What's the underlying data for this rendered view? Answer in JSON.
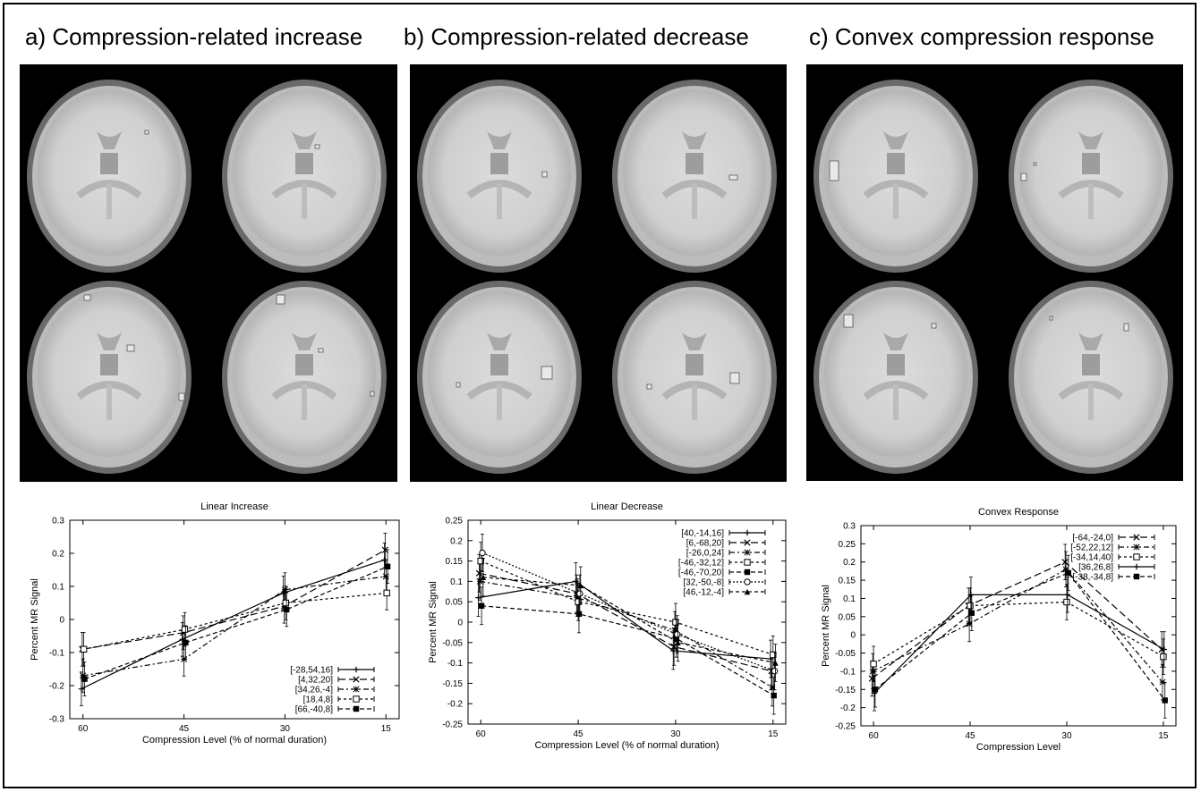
{
  "panels": [
    {
      "title": "a) Compression-related increase",
      "chart_data": {
        "type": "line",
        "title": "Linear Increase",
        "xlabel": "Compression Level (% of normal duration)",
        "ylabel": "Percent MR Signal",
        "categories": [
          "60",
          "45",
          "30",
          "15"
        ],
        "ylim": [
          -0.3,
          0.3
        ],
        "yticks": [
          "-0.3",
          "-0.2",
          "-0.1",
          "0",
          "0.1",
          "0.2",
          "0.3"
        ],
        "grid": false,
        "legend_position": "bottom-right",
        "series": [
          {
            "name": "[-28,54,16]",
            "values": [
              -0.21,
              -0.06,
              0.08,
              0.18
            ],
            "dash": "none",
            "marker": "plus"
          },
          {
            "name": "[4,32,20]",
            "values": [
              -0.09,
              -0.04,
              0.04,
              0.21
            ],
            "dash": "8,4",
            "marker": "x"
          },
          {
            "name": "[34,26,-4]",
            "values": [
              -0.17,
              -0.12,
              0.09,
              0.13
            ],
            "dash": "6,3,2,3",
            "marker": "star"
          },
          {
            "name": "[18,4,8]",
            "values": [
              -0.09,
              -0.03,
              0.05,
              0.08
            ],
            "dash": "3,3",
            "marker": "square"
          },
          {
            "name": "[66,-40,8]",
            "values": [
              -0.18,
              -0.07,
              0.03,
              0.16
            ],
            "dash": "5,3",
            "marker": "filledsquare"
          }
        ]
      }
    },
    {
      "title": "b) Compression-related decrease",
      "chart_data": {
        "type": "line",
        "title": "Linear Decrease",
        "xlabel": "Compression Level (% of normal duration)",
        "ylabel": "Percent MR Signal",
        "categories": [
          "60",
          "45",
          "30",
          "15"
        ],
        "ylim": [
          -0.25,
          0.25
        ],
        "yticks": [
          "-0.25",
          "-0.2",
          "-0.15",
          "-0.1",
          "-0.05",
          "0",
          "0.05",
          "0.1",
          "0.15",
          "0.2",
          "0.25"
        ],
        "grid": false,
        "legend_position": "top-right",
        "series": [
          {
            "name": "[40,-14,16]",
            "values": [
              0.06,
              0.1,
              -0.07,
              -0.09
            ],
            "dash": "none",
            "marker": "plus"
          },
          {
            "name": "[6,-68,20]",
            "values": [
              0.12,
              0.07,
              -0.06,
              -0.12
            ],
            "dash": "8,4",
            "marker": "x"
          },
          {
            "name": "[-26,0,24]",
            "values": [
              0.1,
              0.06,
              -0.02,
              -0.16
            ],
            "dash": "6,3,2,3",
            "marker": "star"
          },
          {
            "name": "[-46,-32,12]",
            "values": [
              0.15,
              0.05,
              0.0,
              -0.08
            ],
            "dash": "3,3",
            "marker": "square"
          },
          {
            "name": "[-46,-70,20]",
            "values": [
              0.04,
              0.02,
              -0.04,
              -0.18
            ],
            "dash": "5,3",
            "marker": "filledsquare"
          },
          {
            "name": "[32,-50,-8]",
            "values": [
              0.17,
              0.07,
              -0.03,
              -0.12
            ],
            "dash": "2,2",
            "marker": "circle"
          },
          {
            "name": "[46,-12,-4]",
            "values": [
              0.11,
              0.09,
              -0.05,
              -0.1
            ],
            "dash": "4,3",
            "marker": "triangle"
          }
        ]
      }
    },
    {
      "title": "c) Convex compression response",
      "chart_data": {
        "type": "line",
        "title": "Convex Response",
        "xlabel": "Compression Level",
        "ylabel": "Percent MR Signal",
        "categories": [
          "60",
          "45",
          "30",
          "15"
        ],
        "ylim": [
          -0.25,
          0.3
        ],
        "yticks": [
          "-0.25",
          "-0.2",
          "-0.15",
          "-0.1",
          "-0.05",
          "0",
          "0.05",
          "0.1",
          "0.15",
          "0.2",
          "0.25",
          "0.3"
        ],
        "grid": false,
        "legend_position": "top-right",
        "series": [
          {
            "name": "[-64,-24,0]",
            "values": [
              -0.12,
              0.08,
              0.2,
              -0.04
            ],
            "dash": "8,4",
            "marker": "x"
          },
          {
            "name": "[-52,22,12]",
            "values": [
              -0.1,
              0.03,
              0.18,
              -0.13
            ],
            "dash": "6,3,2,3",
            "marker": "star"
          },
          {
            "name": "[-34,14,40]",
            "values": [
              -0.08,
              0.08,
              0.09,
              -0.06
            ],
            "dash": "3,3",
            "marker": "square"
          },
          {
            "name": "[36,26,8]",
            "values": [
              -0.16,
              0.11,
              0.11,
              -0.04
            ],
            "dash": "none",
            "marker": "plus"
          },
          {
            "name": "[-38,-34,8]",
            "values": [
              -0.15,
              0.06,
              0.17,
              -0.18
            ],
            "dash": "5,3",
            "marker": "filledsquare"
          }
        ]
      }
    }
  ]
}
